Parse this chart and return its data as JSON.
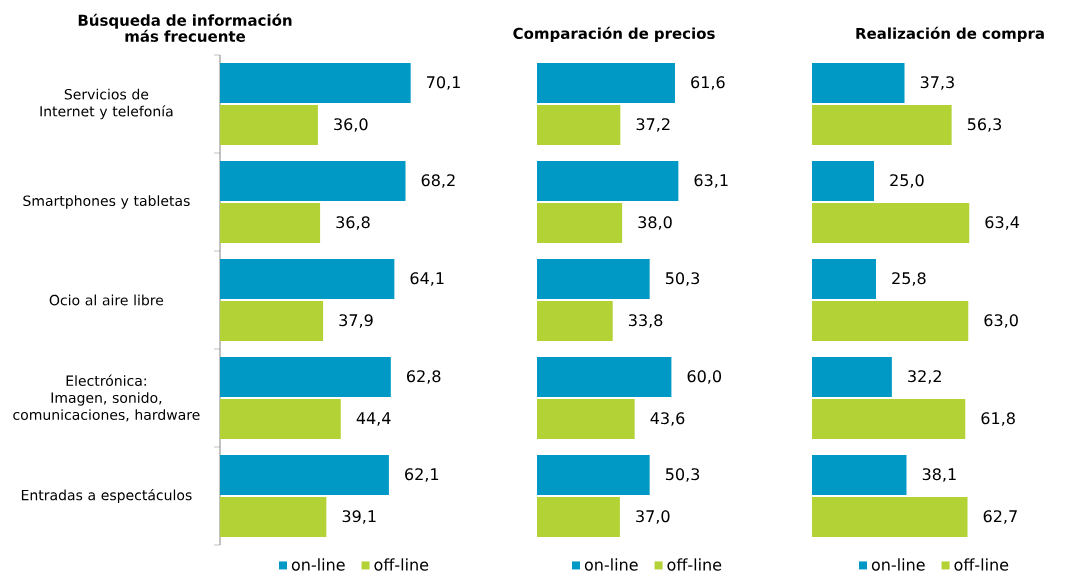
{
  "chart_data": [
    {
      "type": "bar",
      "orientation": "horizontal",
      "title": "Búsqueda de información más frecuente",
      "categories": [
        "Servicios de Internet y telefonía",
        "Smartphones y tabletas",
        "Ocio al aire libre",
        "Electrónica: Imagen, sonido, comunicaciones, hardware",
        "Entradas a espectáculos"
      ],
      "series": [
        {
          "name": "on-line",
          "color": "#0099c6",
          "values": [
            70.1,
            68.2,
            64.1,
            62.8,
            62.1
          ],
          "value_labels": [
            "70,1",
            "68,2",
            "64,1",
            "62,8",
            "62,1"
          ]
        },
        {
          "name": "off-line",
          "color": "#b2d235",
          "values": [
            36.0,
            36.8,
            37.9,
            44.4,
            39.1
          ],
          "value_labels": [
            "36,0",
            "36,8",
            "37,9",
            "44,4",
            "39,1"
          ]
        }
      ],
      "legend": "bottom",
      "tick_labels": "y"
    },
    {
      "type": "bar",
      "orientation": "horizontal",
      "title": "Comparación de precios",
      "categories": [
        null,
        null,
        null,
        null,
        null
      ],
      "series": [
        {
          "name": "on-line",
          "color": "#0099c6",
          "values": [
            61.6,
            63.1,
            50.3,
            60.0,
            50.3
          ],
          "value_labels": [
            "61,6",
            "63,1",
            "50,3",
            "60,0",
            "50,3"
          ]
        },
        {
          "name": "off-line",
          "color": "#b2d235",
          "values": [
            37.2,
            38.0,
            33.8,
            43.6,
            37.0
          ],
          "value_labels": [
            "37,2",
            "38,0",
            "33,8",
            "43,6",
            "37,0"
          ]
        }
      ],
      "legend": "bottom",
      "tick_labels": false
    },
    {
      "type": "bar",
      "orientation": "horizontal",
      "title": "Realización de compra",
      "categories": [
        null,
        null,
        null,
        null,
        null
      ],
      "series": [
        {
          "name": "on-line",
          "color": "#0099c6",
          "values": [
            37.3,
            25.0,
            25.8,
            32.2,
            38.1
          ],
          "value_labels": [
            "37,3",
            "25,0",
            "25,8",
            "32,2",
            "38,1"
          ]
        },
        {
          "name": "off-line",
          "color": "#b2d235",
          "values": [
            56.3,
            63.4,
            63.0,
            61.8,
            62.7
          ],
          "value_labels": [
            "56,3",
            "63,4",
            "63,0",
            "61,8",
            "62,7"
          ]
        }
      ],
      "legend": "bottom",
      "tick_labels": false
    }
  ]
}
